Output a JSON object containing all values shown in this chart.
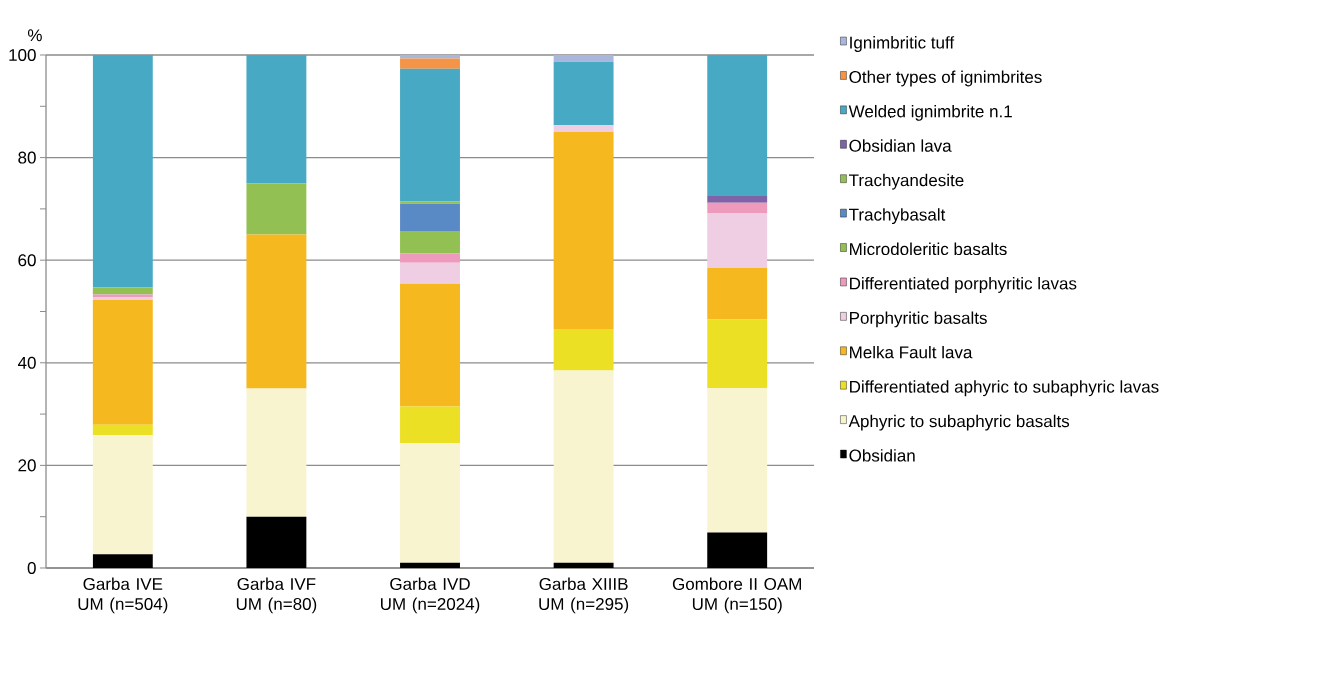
{
  "chart_data": {
    "type": "bar",
    "stacked": true,
    "ylabel": "%",
    "categories": [
      "Garba IVE UM (n=504)",
      "Garba IVF UM (n=80)",
      "Garba IVD UM (n=2024)",
      "Garba XIIIB UM (n=295)",
      "Gombore II OAM UM (n=150)"
    ],
    "series": [
      {
        "name": "Obsidian",
        "color": "#000000",
        "values": [
          2.7,
          10,
          1.0,
          1.0,
          6.9
        ]
      },
      {
        "name": "Aphyric to subaphyric basalts",
        "color": "#f8f4cf",
        "values": [
          23.2,
          25,
          23.3,
          37.5,
          28.2
        ]
      },
      {
        "name": "Differentiated aphyric to subaphyric lavas",
        "color": "#ebe024",
        "values": [
          2.0,
          0,
          7.2,
          8.1,
          13.4
        ]
      },
      {
        "name": "Melka Fault lava",
        "color": "#f5b81e",
        "values": [
          24.4,
          30,
          23.9,
          38.4,
          10.0
        ]
      },
      {
        "name": "Porphyritic basalts",
        "color": "#efcde2",
        "values": [
          0.5,
          0,
          4.1,
          1.3,
          10.7
        ]
      },
      {
        "name": "Differentiated porphyritic lavas",
        "color": "#ee9abd",
        "values": [
          0.5,
          0,
          1.8,
          0,
          2.0
        ]
      },
      {
        "name": "Microdoleritic basalts",
        "color": "#93c052",
        "values": [
          1.4,
          10,
          4.4,
          0,
          0
        ]
      },
      {
        "name": "Trachybasalt",
        "color": "#5a8ac6",
        "values": [
          0,
          0,
          5.3,
          0,
          0
        ]
      },
      {
        "name": "Trachyandesite",
        "color": "#95bf55",
        "values": [
          0,
          0,
          0.5,
          0,
          0
        ]
      },
      {
        "name": "Obsidian lava",
        "color": "#7e63a8",
        "values": [
          0,
          0,
          0,
          0,
          1.3
        ]
      },
      {
        "name": "Welded ignimbrite n.1",
        "color": "#47a9c3",
        "values": [
          45.3,
          25,
          25.8,
          12.4,
          27.5
        ]
      },
      {
        "name": "Other types of ignimbrites",
        "color": "#f39447",
        "values": [
          0,
          0,
          2.0,
          0,
          0
        ]
      },
      {
        "name": "Ignimbritic tuff",
        "color": "#a9b7dc",
        "values": [
          0,
          0,
          0.7,
          1.3,
          0
        ]
      }
    ],
    "ylim": [
      0,
      100
    ],
    "yticks": [
      0,
      {
        "value": 10,
        "label": null
      },
      20,
      {
        "value": 30,
        "label": null
      },
      40,
      {
        "value": 50,
        "label": null
      },
      60,
      {
        "value": 70,
        "label": null
      },
      80,
      {
        "value": 90,
        "label": null
      },
      100
    ],
    "grid": "y",
    "legend": "right"
  }
}
